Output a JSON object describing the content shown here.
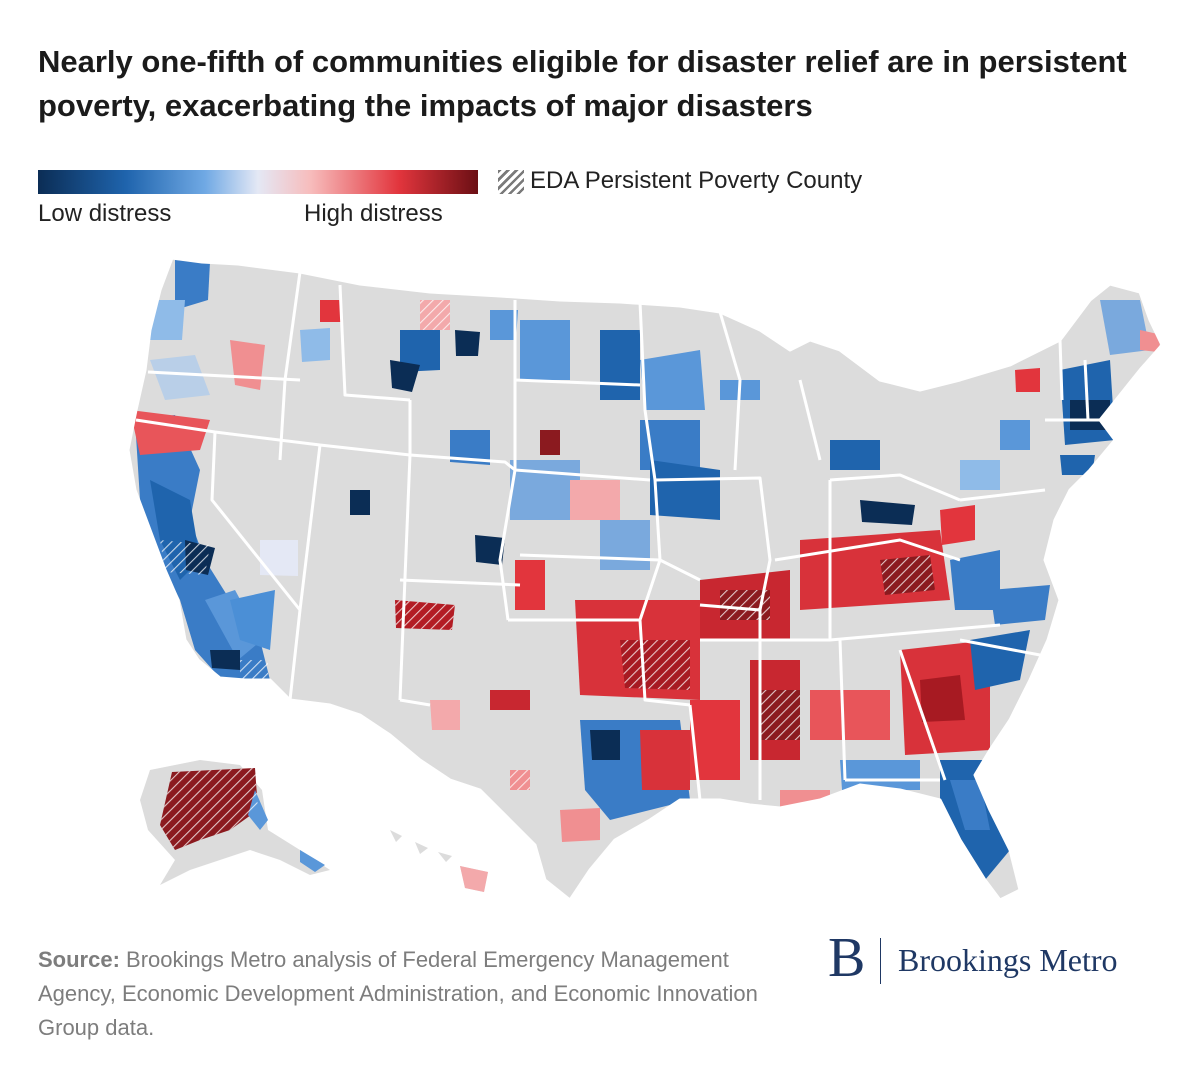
{
  "title": "Nearly one-fifth of communities eligible for disaster relief are in persistent poverty, exacerbating the impacts of major disasters",
  "legend": {
    "low_label": "Low distress",
    "high_label": "High distress",
    "hatch_label": "EDA Persistent Poverty County",
    "scale_colors": [
      "#0b2d55",
      "#1f64ad",
      "#70a9e4",
      "#e4e8f5",
      "#f7bcbc",
      "#e2353d",
      "#6b0f14"
    ]
  },
  "map": {
    "base_color": "#dcdcdc",
    "border_color": "#ffffff",
    "subject": "US counties eligible for disaster relief by distress level"
  },
  "source": {
    "label": "Source:",
    "text": " Brookings Metro analysis of Federal Emergency Management Agency, Economic Development Administration, and Economic Innovation Group data."
  },
  "logo": {
    "letter": "B",
    "name": "Brookings Metro"
  }
}
